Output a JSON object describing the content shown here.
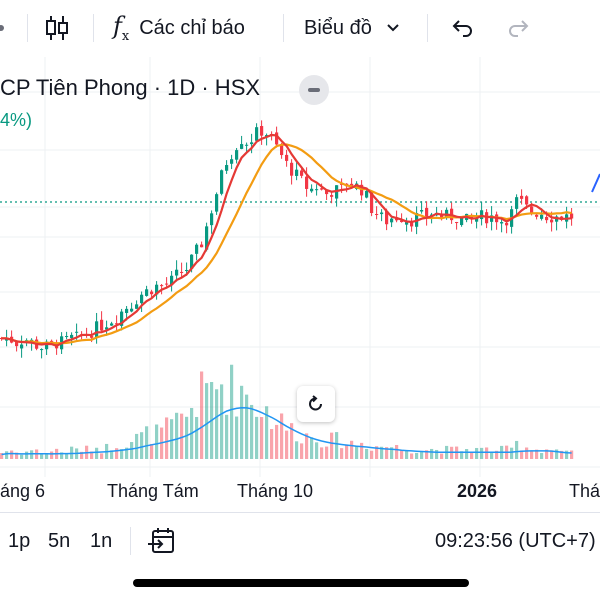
{
  "toolbar": {
    "indicators_label": "Các chỉ báo",
    "chart_label": "Biểu đồ"
  },
  "legend": {
    "title": "CP Tiên Phong · 1D · HSX",
    "change": "4%)"
  },
  "colors": {
    "up": "#089981",
    "down": "#f23645",
    "ma_fast": "#e53935",
    "ma_slow": "#f39c12",
    "volume_ma": "#2196f3",
    "accent": "#2962ff"
  },
  "xaxis": {
    "labels": [
      "áng 6",
      "Tháng Tám",
      "Tháng 10",
      "2026",
      "Thá"
    ]
  },
  "bottom_bar": {
    "intervals": [
      "1p",
      "5n",
      "1n"
    ],
    "clock": "09:23:56 (UTC+7)"
  },
  "chart_data": {
    "type": "candlestick",
    "price_shape": [
      52,
      52,
      51,
      52,
      51,
      50,
      50,
      51,
      51,
      52,
      52,
      53,
      54,
      55,
      56,
      57,
      59,
      60,
      62,
      63,
      64,
      64,
      65,
      67,
      68,
      71,
      74,
      80,
      86,
      92,
      95,
      98,
      97,
      99,
      100,
      98,
      95,
      92,
      90,
      88,
      86,
      87,
      85,
      86,
      86,
      88,
      87,
      86,
      82,
      80,
      79,
      80,
      80,
      79,
      80,
      80,
      81,
      80,
      80,
      80,
      79,
      79,
      80,
      80,
      80,
      79,
      80,
      84,
      82,
      81,
      81,
      80,
      80,
      80,
      80
    ],
    "volume_shape": [
      2,
      3,
      2,
      2,
      3,
      2,
      2,
      3,
      2,
      3,
      3,
      3,
      4,
      3,
      4,
      5,
      5,
      6,
      7,
      8,
      8,
      9,
      10,
      12,
      14,
      18,
      20,
      22,
      24,
      24,
      22,
      23,
      20,
      18,
      16,
      14,
      12,
      10,
      9,
      8,
      7,
      7,
      6,
      6,
      6,
      5,
      5,
      5,
      4,
      4,
      4,
      4,
      3,
      3,
      3,
      3,
      3,
      3,
      3,
      3,
      3,
      3,
      3,
      3,
      3,
      3,
      3,
      5,
      4,
      3,
      3,
      3,
      3,
      2,
      2
    ]
  }
}
